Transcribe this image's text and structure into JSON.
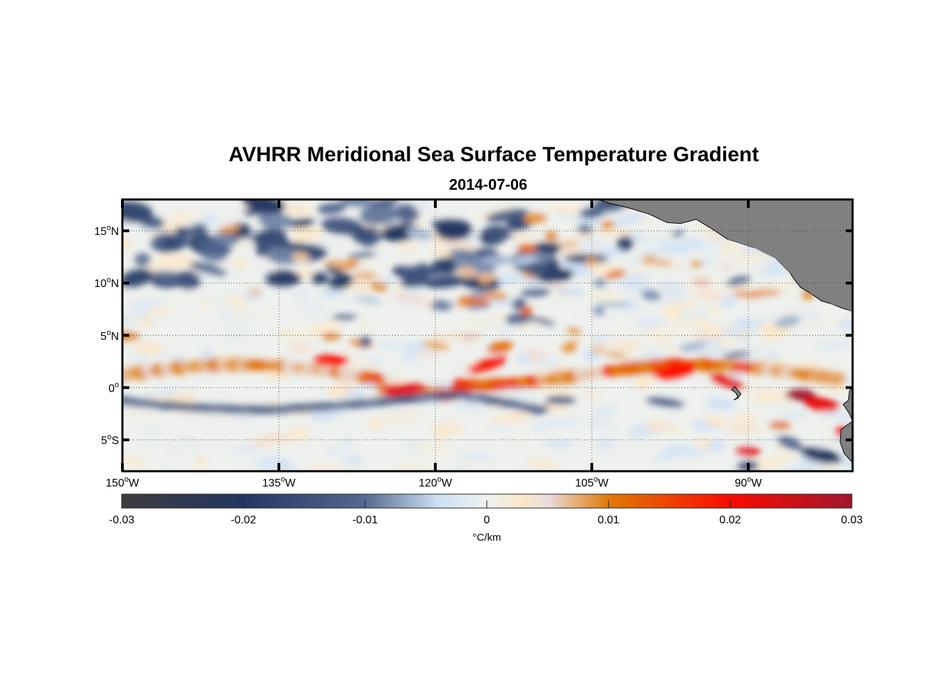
{
  "title": "AVHRR Meridional Sea Surface Temperature Gradient",
  "subtitle": "2014-07-06",
  "chart_data": {
    "type": "heatmap",
    "title": "AVHRR Meridional Sea Surface Temperature Gradient",
    "subtitle": "2014-07-06",
    "projection": "equirectangular",
    "lon_range": [
      -150,
      -80
    ],
    "lat_range": [
      -8,
      18
    ],
    "x_ticks": [
      {
        "lon": -150,
        "deg": "150",
        "hemi": "W"
      },
      {
        "lon": -135,
        "deg": "135",
        "hemi": "W"
      },
      {
        "lon": -120,
        "deg": "120",
        "hemi": "W"
      },
      {
        "lon": -105,
        "deg": "105",
        "hemi": "W"
      },
      {
        "lon": -90,
        "deg": "90",
        "hemi": "W"
      }
    ],
    "y_ticks": [
      {
        "lat": 15,
        "deg": "15",
        "hemi": "N"
      },
      {
        "lat": 10,
        "deg": "10",
        "hemi": "N"
      },
      {
        "lat": 5,
        "deg": "5",
        "hemi": "N"
      },
      {
        "lat": 0,
        "deg": "0",
        "hemi": ""
      },
      {
        "lat": -5,
        "deg": "5",
        "hemi": "S"
      }
    ],
    "grid": "dotted",
    "land_color": "#808080",
    "colorbar": {
      "orientation": "horizontal",
      "placement": "bottom",
      "range": [
        -0.03,
        0.03
      ],
      "ticks": [
        "-0.03",
        "-0.02",
        "-0.01",
        "0",
        "0.01",
        "0.02",
        "0.03"
      ],
      "tick_values": [
        -0.03,
        -0.02,
        -0.01,
        0,
        0.01,
        0.02,
        0.03
      ],
      "units": "°C/km",
      "colormap_stops": [
        {
          "v": -0.03,
          "color": "#3d3d3f"
        },
        {
          "v": -0.02,
          "color": "#233761"
        },
        {
          "v": -0.01,
          "color": "#55698f"
        },
        {
          "v": -0.004,
          "color": "#cfe0f4"
        },
        {
          "v": 0.0,
          "color": "#eef1ee"
        },
        {
          "v": 0.003,
          "color": "#fbe8c9"
        },
        {
          "v": 0.005,
          "color": "#eadcdc"
        },
        {
          "v": 0.01,
          "color": "#e07a06"
        },
        {
          "v": 0.02,
          "color": "#fa0b00"
        },
        {
          "v": 0.03,
          "color": "#a0172f"
        }
      ]
    },
    "features": [
      {
        "name": "equatorial front (north of equator)",
        "lat": 1,
        "lon_span": [
          -150,
          -80
        ],
        "value": 0.015
      },
      {
        "name": "cold tongue southern edge",
        "lat": -1.5,
        "lon_span": [
          -150,
          -110
        ],
        "value": -0.012
      },
      {
        "name": "Galapagos front maxima",
        "lat": -0.5,
        "lon_span": [
          -88,
          -82
        ],
        "value": 0.028
      },
      {
        "name": "northern eddies",
        "lat": 14,
        "lon_span": [
          -150,
          -120
        ],
        "value": -0.015
      }
    ]
  }
}
